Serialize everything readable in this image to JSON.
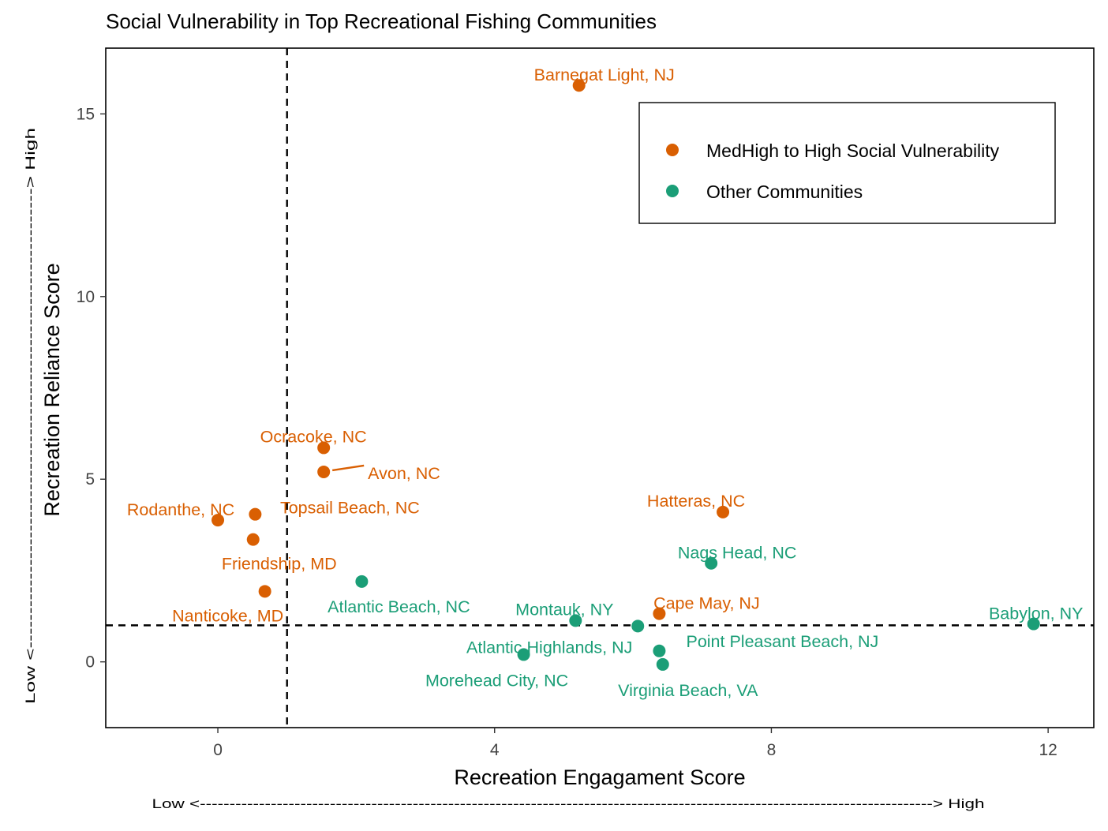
{
  "chart_data": {
    "type": "scatter",
    "title": "Social Vulnerability in Top Recreational Fishing Communities",
    "xlabel": "Recreation Engagament Score",
    "ylabel": "Recreation Reliance Score",
    "x_scale_note": "Low <----------------------------------------------------------------------------------------------------------------------------> High",
    "y_scale_note": "Low <-------------------------------------------------------------------> High",
    "xlim": [
      -1.62,
      12.66
    ],
    "ylim": [
      -1.8,
      16.8
    ],
    "x_ticks": [
      0,
      4,
      8,
      12
    ],
    "y_ticks": [
      0,
      5,
      10,
      15
    ],
    "reference_lines": {
      "x": 1,
      "y": 1,
      "style": "dashed"
    },
    "grid": false,
    "legend_position": "top-right",
    "colors": {
      "medhigh": "#D95F02",
      "other": "#1B9E77"
    },
    "series": [
      {
        "name": "MedHigh to High Social Vulnerability",
        "color": "#D95F02",
        "points": [
          {
            "label": "Barnegat Light, NJ",
            "x": 5.22,
            "y": 15.78
          },
          {
            "label": "Ocracoke, NC",
            "x": 1.53,
            "y": 5.86
          },
          {
            "label": "Avon, NC",
            "x": 1.53,
            "y": 5.2
          },
          {
            "label": "Rodanthe, NC",
            "x": 0.0,
            "y": 3.88
          },
          {
            "label": "Topsail Beach, NC",
            "x": 0.54,
            "y": 4.04
          },
          {
            "label": "Friendship, MD",
            "x": 0.51,
            "y": 3.35
          },
          {
            "label": "Nanticoke, MD",
            "x": 0.68,
            "y": 1.93
          },
          {
            "label": "Hatteras, NC",
            "x": 7.3,
            "y": 4.1
          },
          {
            "label": "Cape May, NJ",
            "x": 6.38,
            "y": 1.32
          }
        ]
      },
      {
        "name": "Other Communities",
        "color": "#1B9E77",
        "points": [
          {
            "label": "Nags Head, NC",
            "x": 7.13,
            "y": 2.7
          },
          {
            "label": "Atlantic Beach, NC",
            "x": 2.08,
            "y": 2.2
          },
          {
            "label": "Montauk, NY",
            "x": 5.17,
            "y": 1.13
          },
          {
            "label": "Atlantic Highlands, NJ",
            "x": 6.07,
            "y": 0.98
          },
          {
            "label": "Point Pleasant Beach, NJ",
            "x": 6.38,
            "y": 0.3
          },
          {
            "label": "Virginia Beach, VA",
            "x": 6.43,
            "y": -0.07
          },
          {
            "label": "Morehead City, NC",
            "x": 4.42,
            "y": 0.2
          },
          {
            "label": "Babylon, NY",
            "x": 11.79,
            "y": 1.04
          }
        ]
      }
    ]
  }
}
